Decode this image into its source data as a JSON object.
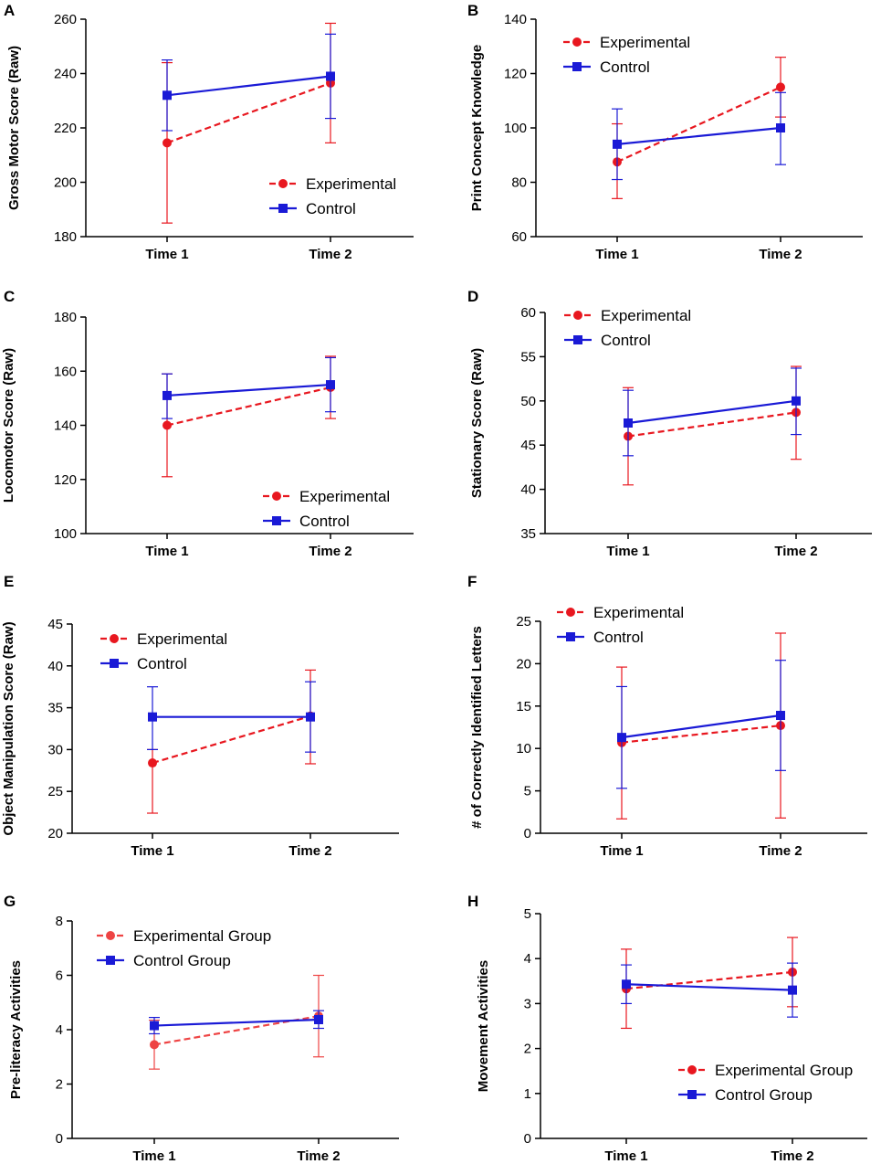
{
  "chart_data": [
    {
      "type": "line",
      "panel": "A",
      "categories": [
        "Time 1",
        "Time 2"
      ],
      "ylabel": "Gross Motor Score (Raw)",
      "ylim": [
        180,
        260
      ],
      "yticks": [
        "180",
        "200",
        "220",
        "240",
        "260"
      ],
      "ytick_values": [
        180,
        200,
        220,
        240,
        260
      ],
      "legend": "bottom-right",
      "series": [
        {
          "name": "Experimental",
          "color": "#e8171f",
          "dashed": true,
          "marker": "circle",
          "values": [
            214.5,
            236.5
          ],
          "err_low": [
            185,
            214.5
          ],
          "err_high": [
            244,
            258.5
          ]
        },
        {
          "name": "Control",
          "color": "#1a1ad6",
          "dashed": false,
          "marker": "square",
          "values": [
            232,
            239
          ],
          "err_low": [
            219,
            223.5
          ],
          "err_high": [
            245,
            254.5
          ]
        }
      ]
    },
    {
      "type": "line",
      "panel": "B",
      "categories": [
        "Time 1",
        "Time 2"
      ],
      "ylabel": "Print Concept Knowledge",
      "ylim": [
        60,
        140
      ],
      "yticks": [
        "60",
        "80",
        "100",
        "120",
        "140"
      ],
      "ytick_values": [
        60,
        80,
        100,
        120,
        140
      ],
      "legend": "top-left",
      "series": [
        {
          "name": "Experimental",
          "color": "#e8171f",
          "dashed": true,
          "marker": "circle",
          "values": [
            87.5,
            115
          ],
          "err_low": [
            74,
            104
          ],
          "err_high": [
            101.5,
            126
          ]
        },
        {
          "name": "Control",
          "color": "#1a1ad6",
          "dashed": false,
          "marker": "square",
          "values": [
            94,
            100
          ],
          "err_low": [
            81,
            86.5
          ],
          "err_high": [
            107,
            113
          ]
        }
      ]
    },
    {
      "type": "line",
      "panel": "C",
      "categories": [
        "Time 1",
        "Time 2"
      ],
      "ylabel": "Locomotor Score (Raw)",
      "ylim": [
        100,
        180
      ],
      "yticks": [
        "100",
        "120",
        "140",
        "160",
        "180"
      ],
      "ytick_values": [
        100,
        120,
        140,
        160,
        180
      ],
      "legend": "bottom-right",
      "series": [
        {
          "name": "Experimental",
          "color": "#e8171f",
          "dashed": true,
          "marker": "circle",
          "values": [
            140,
            154
          ],
          "err_low": [
            121,
            142.5
          ],
          "err_high": [
            159,
            165.5
          ]
        },
        {
          "name": "Control",
          "color": "#1a1ad6",
          "dashed": false,
          "marker": "square",
          "values": [
            151,
            155
          ],
          "err_low": [
            142.5,
            145
          ],
          "err_high": [
            159,
            165
          ]
        }
      ]
    },
    {
      "type": "line",
      "panel": "D",
      "categories": [
        "Time 1",
        "Time 2"
      ],
      "ylabel": "Stationary Score (Raw)",
      "ylim": [
        35,
        60
      ],
      "yticks": [
        "35",
        "40",
        "45",
        "50",
        "55",
        "60"
      ],
      "ytick_values": [
        35,
        40,
        45,
        50,
        55,
        60
      ],
      "legend": "top-left",
      "series": [
        {
          "name": "Experimental",
          "color": "#e8171f",
          "dashed": true,
          "marker": "circle",
          "values": [
            46,
            48.7
          ],
          "err_low": [
            40.5,
            43.4
          ],
          "err_high": [
            51.5,
            53.9
          ]
        },
        {
          "name": "Control",
          "color": "#1a1ad6",
          "dashed": false,
          "marker": "square",
          "values": [
            47.5,
            50
          ],
          "err_low": [
            43.8,
            46.2
          ],
          "err_high": [
            51.2,
            53.7
          ]
        }
      ]
    },
    {
      "type": "line",
      "panel": "E",
      "categories": [
        "Time 1",
        "Time 2"
      ],
      "ylabel": "Object Manipulation Score (Raw)",
      "ylim": [
        20,
        45
      ],
      "yticks": [
        "20",
        "25",
        "30",
        "35",
        "40",
        "45"
      ],
      "ytick_values": [
        20,
        25,
        30,
        35,
        40,
        45
      ],
      "legend": "top-left",
      "series": [
        {
          "name": "Experimental",
          "color": "#e8171f",
          "dashed": true,
          "marker": "circle",
          "values": [
            28.4,
            34
          ],
          "err_low": [
            22.4,
            28.3
          ],
          "err_high": [
            30,
            39.5
          ]
        },
        {
          "name": "Control",
          "color": "#1a1ad6",
          "dashed": false,
          "marker": "square",
          "values": [
            33.9,
            33.9
          ],
          "err_low": [
            30,
            29.7
          ],
          "err_high": [
            37.5,
            38.1
          ]
        }
      ]
    },
    {
      "type": "line",
      "panel": "F",
      "categories": [
        "Time 1",
        "Time 2"
      ],
      "ylabel": "# of Correctly Identified Letters",
      "ylim": [
        0,
        25
      ],
      "yticks": [
        "0",
        "5",
        "10",
        "15",
        "20",
        "25"
      ],
      "ytick_values": [
        0,
        5,
        10,
        15,
        20,
        25
      ],
      "legend": "top-left",
      "series": [
        {
          "name": "Experimental",
          "color": "#e8171f",
          "dashed": true,
          "marker": "circle",
          "values": [
            10.7,
            12.7
          ],
          "err_low": [
            1.7,
            1.8
          ],
          "err_high": [
            19.6,
            23.6
          ]
        },
        {
          "name": "Control",
          "color": "#1a1ad6",
          "dashed": false,
          "marker": "square",
          "values": [
            11.3,
            13.9
          ],
          "err_low": [
            5.3,
            7.4
          ],
          "err_high": [
            17.3,
            20.4
          ]
        }
      ]
    },
    {
      "type": "line",
      "panel": "G",
      "categories": [
        "Time 1",
        "Time 2"
      ],
      "ylabel": "Pre-literacy Activities",
      "ylim": [
        0,
        8
      ],
      "yticks": [
        "0",
        "2",
        "4",
        "6",
        "8"
      ],
      "ytick_values": [
        0,
        2,
        4,
        6,
        8
      ],
      "legend": "top-left",
      "series": [
        {
          "name": "Experimental Group",
          "color": "#ee4444",
          "dashed": true,
          "marker": "circle",
          "values": [
            3.45,
            4.5
          ],
          "err_low": [
            2.55,
            3.0
          ],
          "err_high": [
            4.35,
            6.0
          ]
        },
        {
          "name": "Control Group",
          "color": "#1a1ad6",
          "dashed": false,
          "marker": "square",
          "values": [
            4.15,
            4.37
          ],
          "err_low": [
            3.85,
            4.05
          ],
          "err_high": [
            4.45,
            4.7
          ]
        }
      ]
    },
    {
      "type": "line",
      "panel": "H",
      "categories": [
        "Time 1",
        "Time 2"
      ],
      "ylabel": "Movement Activities",
      "ylim": [
        0,
        5
      ],
      "yticks": [
        "0",
        "1",
        "2",
        "3",
        "4",
        "5"
      ],
      "ytick_values": [
        0,
        1,
        2,
        3,
        4,
        5
      ],
      "legend": "bottom-right",
      "series": [
        {
          "name": "Experimental Group",
          "color": "#e8171f",
          "dashed": true,
          "marker": "circle",
          "values": [
            3.33,
            3.7
          ],
          "err_low": [
            2.45,
            2.93
          ],
          "err_high": [
            4.21,
            4.47
          ]
        },
        {
          "name": "Control Group",
          "color": "#1a1ad6",
          "dashed": false,
          "marker": "square",
          "values": [
            3.43,
            3.3
          ],
          "err_low": [
            3.0,
            2.7
          ],
          "err_high": [
            3.86,
            3.9
          ]
        }
      ]
    }
  ]
}
